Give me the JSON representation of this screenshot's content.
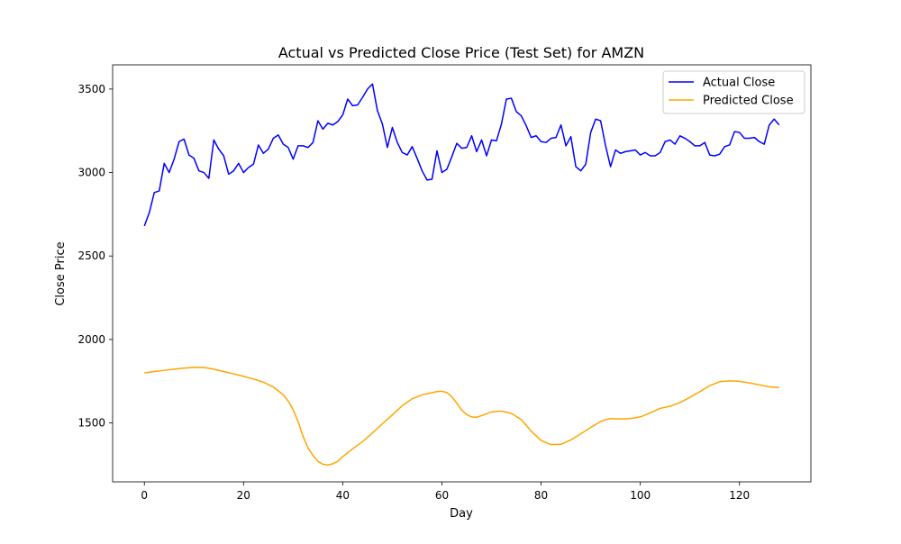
{
  "chart_data": {
    "type": "line",
    "title": "Actual vs Predicted Close Price (Test Set) for AMZN",
    "xlabel": "Day",
    "ylabel": "Close Price",
    "xlim": [
      -6.4,
      134.4
    ],
    "ylim": [
      1147,
      3645
    ],
    "xticks": [
      0,
      20,
      40,
      60,
      80,
      100,
      120
    ],
    "yticks": [
      1500,
      2000,
      2500,
      3000,
      3500
    ],
    "grid": false,
    "legend_position": "top-right",
    "series": [
      {
        "name": "Actual Close",
        "color": "#0000ff",
        "x": [
          0,
          1,
          2,
          3,
          4,
          5,
          6,
          7,
          8,
          9,
          10,
          11,
          12,
          13,
          14,
          15,
          16,
          17,
          18,
          19,
          20,
          21,
          22,
          23,
          24,
          25,
          26,
          27,
          28,
          29,
          30,
          31,
          32,
          33,
          34,
          35,
          36,
          37,
          38,
          39,
          40,
          41,
          42,
          43,
          44,
          45,
          46,
          47,
          48,
          49,
          50,
          51,
          52,
          53,
          54,
          55,
          56,
          57,
          58,
          59,
          60,
          61,
          62,
          63,
          64,
          65,
          66,
          67,
          68,
          69,
          70,
          71,
          72,
          73,
          74,
          75,
          76,
          77,
          78,
          79,
          80,
          81,
          82,
          83,
          84,
          85,
          86,
          87,
          88,
          89,
          90,
          91,
          92,
          93,
          94,
          95,
          96,
          97,
          98,
          99,
          100,
          101,
          102,
          103,
          104,
          105,
          106,
          107,
          108,
          109,
          110,
          111,
          112,
          113,
          114,
          115,
          116,
          117,
          118,
          119,
          120,
          121,
          122,
          123,
          124,
          125,
          126,
          127,
          128
        ],
        "values": [
          2680,
          2760,
          2880,
          2890,
          3055,
          3000,
          3080,
          3185,
          3200,
          3105,
          3085,
          3010,
          3000,
          2965,
          3195,
          3140,
          3100,
          2990,
          3010,
          3055,
          3000,
          3030,
          3050,
          3165,
          3115,
          3140,
          3205,
          3225,
          3170,
          3150,
          3080,
          3160,
          3160,
          3150,
          3180,
          3310,
          3260,
          3295,
          3285,
          3305,
          3345,
          3440,
          3400,
          3405,
          3450,
          3500,
          3530,
          3370,
          3290,
          3150,
          3270,
          3180,
          3120,
          3105,
          3155,
          3085,
          3010,
          2955,
          2960,
          3130,
          3000,
          3020,
          3095,
          3175,
          3145,
          3150,
          3220,
          3125,
          3195,
          3100,
          3195,
          3190,
          3290,
          3440,
          3445,
          3365,
          3340,
          3280,
          3210,
          3220,
          3185,
          3180,
          3205,
          3210,
          3285,
          3160,
          3215,
          3035,
          3010,
          3050,
          3240,
          3320,
          3310,
          3160,
          3035,
          3135,
          3115,
          3125,
          3130,
          3135,
          3105,
          3120,
          3100,
          3100,
          3120,
          3185,
          3195,
          3170,
          3220,
          3205,
          3185,
          3160,
          3160,
          3180,
          3105,
          3100,
          3110,
          3155,
          3165,
          3245,
          3240,
          3205,
          3205,
          3210,
          3185,
          3170,
          3285,
          3320,
          3285
        ]
      },
      {
        "name": "Predicted Close",
        "color": "#ffa500",
        "x": [
          0,
          2,
          4,
          6,
          8,
          10,
          12,
          14,
          16,
          18,
          20,
          22,
          24,
          26,
          28,
          29,
          30,
          31,
          32,
          33,
          34,
          35,
          36,
          37,
          38,
          39,
          40,
          42,
          44,
          46,
          48,
          50,
          52,
          54,
          56,
          58,
          59,
          60,
          61,
          62,
          63,
          64,
          65,
          66,
          67,
          68,
          70,
          72,
          74,
          76,
          78,
          80,
          82,
          84,
          86,
          88,
          90,
          92,
          93,
          94,
          96,
          98,
          100,
          102,
          104,
          106,
          108,
          110,
          112,
          114,
          116,
          118,
          120,
          122,
          124,
          126,
          128
        ],
        "values": [
          1800,
          1808,
          1815,
          1822,
          1828,
          1833,
          1832,
          1822,
          1808,
          1794,
          1779,
          1763,
          1744,
          1715,
          1669,
          1631,
          1579,
          1508,
          1420,
          1350,
          1305,
          1270,
          1252,
          1248,
          1255,
          1270,
          1298,
          1345,
          1388,
          1440,
          1495,
          1548,
          1603,
          1645,
          1668,
          1681,
          1688,
          1690,
          1682,
          1657,
          1618,
          1576,
          1550,
          1536,
          1534,
          1544,
          1566,
          1571,
          1557,
          1520,
          1451,
          1395,
          1370,
          1372,
          1398,
          1435,
          1473,
          1508,
          1520,
          1526,
          1523,
          1526,
          1536,
          1560,
          1587,
          1600,
          1622,
          1653,
          1687,
          1723,
          1747,
          1752,
          1749,
          1740,
          1728,
          1716,
          1712
        ]
      }
    ]
  }
}
